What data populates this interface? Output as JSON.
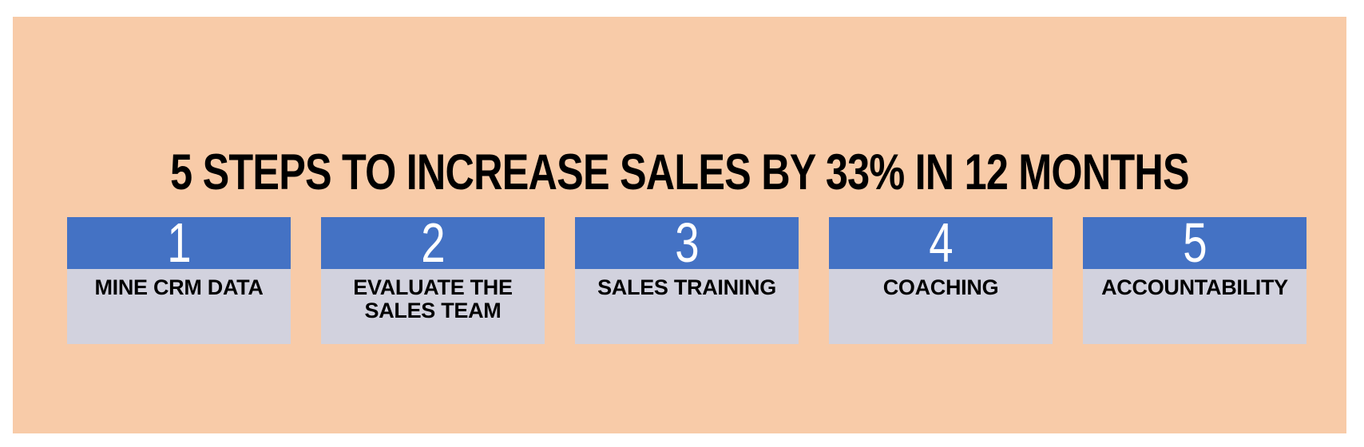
{
  "title": "5 STEPS TO INCREASE SALES BY 33% IN 12 MONTHS",
  "colors": {
    "frame": "#FFFFFF",
    "canvas": "#F8CBA8",
    "step_header": "#4472C4",
    "step_body": "#D2D2DE",
    "title_text": "#000000",
    "step_number_text": "#FFFFFF",
    "step_label_text": "#000000"
  },
  "steps": [
    {
      "number": "1",
      "label": "MINE CRM DATA"
    },
    {
      "number": "2",
      "label": "EVALUATE THE SALES TEAM"
    },
    {
      "number": "3",
      "label": "SALES TRAINING"
    },
    {
      "number": "4",
      "label": "COACHING"
    },
    {
      "number": "5",
      "label": "ACCOUNTABILITY"
    }
  ]
}
